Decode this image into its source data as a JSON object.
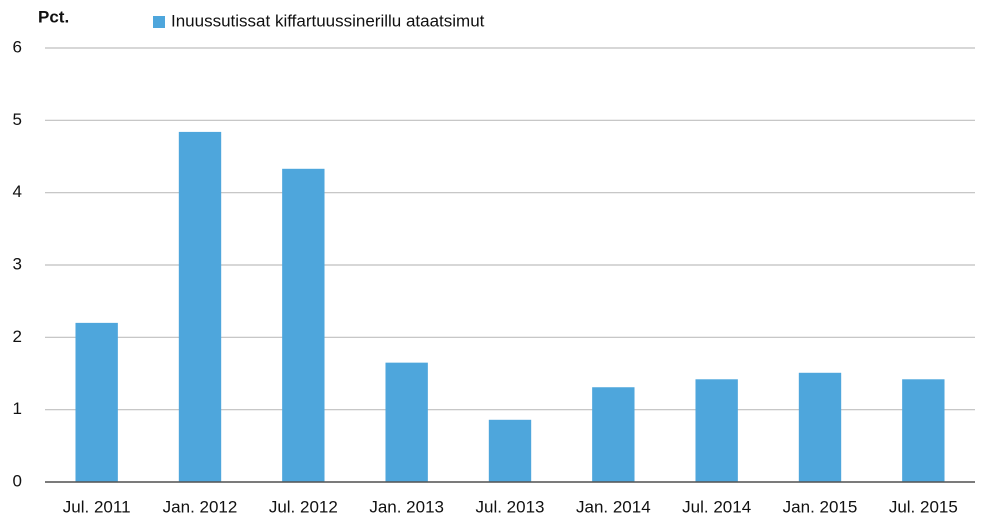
{
  "chart_data": {
    "type": "bar",
    "y_label": "Pct.",
    "categories": [
      "Jul. 2011",
      "Jan. 2012",
      "Jul. 2012",
      "Jan. 2013",
      "Jul. 2013",
      "Jan. 2014",
      "Jul. 2014",
      "Jan. 2015",
      "Jul. 2015"
    ],
    "series": [
      {
        "name": "Inuussutissat kiffartuussinerillu ataatsimut",
        "color": "#4ea6dc",
        "values": [
          2.2,
          4.84,
          4.33,
          1.65,
          0.86,
          1.31,
          1.42,
          1.51,
          1.42
        ]
      }
    ],
    "ylim": [
      0,
      6
    ],
    "yticks": [
      0,
      1,
      2,
      3,
      4,
      5,
      6
    ],
    "grid": true
  }
}
